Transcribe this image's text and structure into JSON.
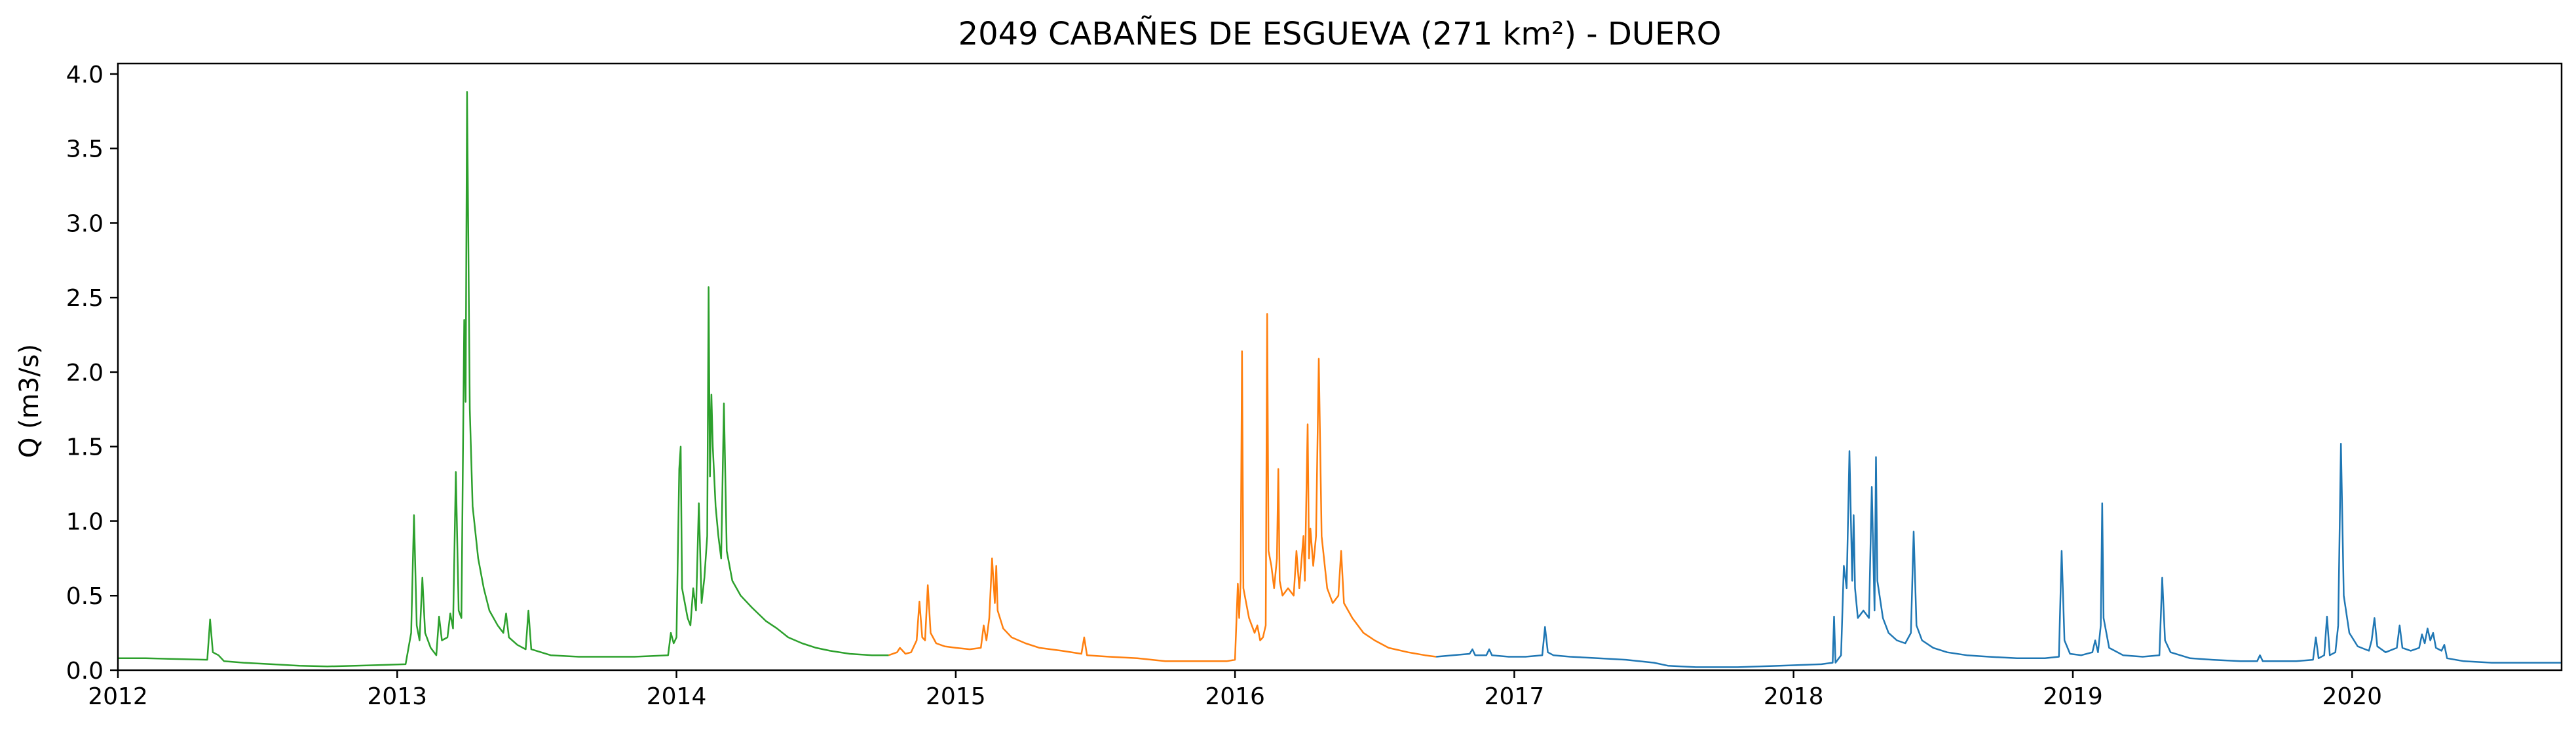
{
  "chart_data": {
    "type": "line",
    "title": "2049 CABAÑES DE ESGUEVA (271 km²) - DUERO",
    "xlabel": "",
    "ylabel": "Q (m3/s)",
    "xlim": [
      2012.0,
      2020.75
    ],
    "ylim": [
      0.0,
      4.07
    ],
    "xticks": [
      "2012",
      "2013",
      "2014",
      "2015",
      "2016",
      "2017",
      "2018",
      "2019",
      "2020"
    ],
    "xtick_values": [
      2012,
      2013,
      2014,
      2015,
      2016,
      2017,
      2018,
      2019,
      2020
    ],
    "yticks": [
      "0.0",
      "0.5",
      "1.0",
      "1.5",
      "2.0",
      "2.5",
      "3.0",
      "3.5",
      "4.0"
    ],
    "ytick_values": [
      0.0,
      0.5,
      1.0,
      1.5,
      2.0,
      2.5,
      3.0,
      3.5,
      4.0
    ],
    "grid": false,
    "legend": "none",
    "series": [
      {
        "color": "#2ca02c",
        "points": [
          [
            2012.0,
            0.08
          ],
          [
            2012.1,
            0.08
          ],
          [
            2012.2,
            0.075
          ],
          [
            2012.32,
            0.07
          ],
          [
            2012.33,
            0.34
          ],
          [
            2012.34,
            0.12
          ],
          [
            2012.36,
            0.1
          ],
          [
            2012.38,
            0.06
          ],
          [
            2012.45,
            0.05
          ],
          [
            2012.55,
            0.04
          ],
          [
            2012.65,
            0.03
          ],
          [
            2012.75,
            0.025
          ],
          [
            2012.85,
            0.03
          ],
          [
            2012.95,
            0.035
          ],
          [
            2013.03,
            0.04
          ],
          [
            2013.05,
            0.25
          ],
          [
            2013.06,
            1.04
          ],
          [
            2013.07,
            0.3
          ],
          [
            2013.08,
            0.2
          ],
          [
            2013.09,
            0.62
          ],
          [
            2013.1,
            0.25
          ],
          [
            2013.12,
            0.15
          ],
          [
            2013.14,
            0.1
          ],
          [
            2013.15,
            0.36
          ],
          [
            2013.16,
            0.2
          ],
          [
            2013.18,
            0.22
          ],
          [
            2013.19,
            0.38
          ],
          [
            2013.2,
            0.28
          ],
          [
            2013.21,
            1.33
          ],
          [
            2013.22,
            0.4
          ],
          [
            2013.23,
            0.35
          ],
          [
            2013.24,
            2.35
          ],
          [
            2013.245,
            1.8
          ],
          [
            2013.25,
            3.88
          ],
          [
            2013.26,
            1.75
          ],
          [
            2013.27,
            1.1
          ],
          [
            2013.29,
            0.75
          ],
          [
            2013.31,
            0.55
          ],
          [
            2013.33,
            0.4
          ],
          [
            2013.36,
            0.3
          ],
          [
            2013.38,
            0.25
          ],
          [
            2013.39,
            0.38
          ],
          [
            2013.4,
            0.22
          ],
          [
            2013.43,
            0.17
          ],
          [
            2013.46,
            0.14
          ],
          [
            2013.47,
            0.4
          ],
          [
            2013.48,
            0.14
          ],
          [
            2013.55,
            0.1
          ],
          [
            2013.65,
            0.09
          ],
          [
            2013.75,
            0.09
          ],
          [
            2013.85,
            0.09
          ],
          [
            2013.97,
            0.1
          ],
          [
            2013.98,
            0.25
          ],
          [
            2013.99,
            0.18
          ],
          [
            2014.0,
            0.22
          ],
          [
            2014.01,
            1.35
          ],
          [
            2014.015,
            1.5
          ],
          [
            2014.02,
            0.55
          ],
          [
            2014.04,
            0.35
          ],
          [
            2014.05,
            0.3
          ],
          [
            2014.06,
            0.55
          ],
          [
            2014.07,
            0.4
          ],
          [
            2014.08,
            1.12
          ],
          [
            2014.09,
            0.45
          ],
          [
            2014.1,
            0.62
          ],
          [
            2014.11,
            0.9
          ],
          [
            2014.115,
            2.57
          ],
          [
            2014.12,
            1.3
          ],
          [
            2014.125,
            1.85
          ],
          [
            2014.13,
            1.5
          ],
          [
            2014.14,
            1.1
          ],
          [
            2014.15,
            0.9
          ],
          [
            2014.16,
            0.75
          ],
          [
            2014.17,
            1.79
          ],
          [
            2014.18,
            0.8
          ],
          [
            2014.2,
            0.6
          ],
          [
            2014.23,
            0.5
          ],
          [
            2014.27,
            0.42
          ],
          [
            2014.32,
            0.33
          ],
          [
            2014.36,
            0.28
          ],
          [
            2014.4,
            0.22
          ],
          [
            2014.45,
            0.18
          ],
          [
            2014.5,
            0.15
          ],
          [
            2014.55,
            0.13
          ],
          [
            2014.62,
            0.11
          ],
          [
            2014.7,
            0.1
          ],
          [
            2014.76,
            0.1
          ]
        ]
      },
      {
        "color": "#ff7f0e",
        "points": [
          [
            2014.76,
            0.1
          ],
          [
            2014.79,
            0.12
          ],
          [
            2014.8,
            0.15
          ],
          [
            2014.82,
            0.11
          ],
          [
            2014.84,
            0.12
          ],
          [
            2014.86,
            0.2
          ],
          [
            2014.87,
            0.46
          ],
          [
            2014.88,
            0.22
          ],
          [
            2014.89,
            0.2
          ],
          [
            2014.9,
            0.57
          ],
          [
            2014.91,
            0.25
          ],
          [
            2014.93,
            0.18
          ],
          [
            2014.96,
            0.16
          ],
          [
            2015.0,
            0.15
          ],
          [
            2015.05,
            0.14
          ],
          [
            2015.09,
            0.15
          ],
          [
            2015.1,
            0.3
          ],
          [
            2015.11,
            0.2
          ],
          [
            2015.12,
            0.35
          ],
          [
            2015.13,
            0.75
          ],
          [
            2015.14,
            0.45
          ],
          [
            2015.145,
            0.7
          ],
          [
            2015.15,
            0.4
          ],
          [
            2015.17,
            0.28
          ],
          [
            2015.2,
            0.22
          ],
          [
            2015.25,
            0.18
          ],
          [
            2015.3,
            0.15
          ],
          [
            2015.38,
            0.13
          ],
          [
            2015.45,
            0.11
          ],
          [
            2015.46,
            0.22
          ],
          [
            2015.47,
            0.1
          ],
          [
            2015.55,
            0.09
          ],
          [
            2015.65,
            0.08
          ],
          [
            2015.75,
            0.06
          ],
          [
            2015.85,
            0.06
          ],
          [
            2015.97,
            0.06
          ],
          [
            2016.0,
            0.07
          ],
          [
            2016.01,
            0.58
          ],
          [
            2016.015,
            0.35
          ],
          [
            2016.02,
            0.6
          ],
          [
            2016.025,
            2.14
          ],
          [
            2016.03,
            0.55
          ],
          [
            2016.05,
            0.35
          ],
          [
            2016.07,
            0.25
          ],
          [
            2016.08,
            0.3
          ],
          [
            2016.09,
            0.2
          ],
          [
            2016.1,
            0.22
          ],
          [
            2016.11,
            0.3
          ],
          [
            2016.115,
            2.39
          ],
          [
            2016.12,
            0.8
          ],
          [
            2016.13,
            0.7
          ],
          [
            2016.14,
            0.55
          ],
          [
            2016.15,
            0.75
          ],
          [
            2016.155,
            1.35
          ],
          [
            2016.16,
            0.6
          ],
          [
            2016.17,
            0.5
          ],
          [
            2016.19,
            0.55
          ],
          [
            2016.21,
            0.5
          ],
          [
            2016.22,
            0.8
          ],
          [
            2016.23,
            0.55
          ],
          [
            2016.245,
            0.9
          ],
          [
            2016.25,
            0.6
          ],
          [
            2016.26,
            1.65
          ],
          [
            2016.265,
            0.75
          ],
          [
            2016.27,
            0.95
          ],
          [
            2016.28,
            0.7
          ],
          [
            2016.29,
            0.9
          ],
          [
            2016.3,
            2.09
          ],
          [
            2016.31,
            0.9
          ],
          [
            2016.33,
            0.55
          ],
          [
            2016.35,
            0.45
          ],
          [
            2016.37,
            0.5
          ],
          [
            2016.38,
            0.8
          ],
          [
            2016.39,
            0.45
          ],
          [
            2016.42,
            0.35
          ],
          [
            2016.46,
            0.25
          ],
          [
            2016.5,
            0.2
          ],
          [
            2016.55,
            0.15
          ],
          [
            2016.62,
            0.12
          ],
          [
            2016.68,
            0.1
          ],
          [
            2016.72,
            0.09
          ]
        ]
      },
      {
        "color": "#1f77b4",
        "points": [
          [
            2016.72,
            0.09
          ],
          [
            2016.78,
            0.1
          ],
          [
            2016.84,
            0.11
          ],
          [
            2016.85,
            0.14
          ],
          [
            2016.86,
            0.1
          ],
          [
            2016.9,
            0.1
          ],
          [
            2016.91,
            0.14
          ],
          [
            2016.92,
            0.1
          ],
          [
            2016.98,
            0.09
          ],
          [
            2017.04,
            0.09
          ],
          [
            2017.1,
            0.1
          ],
          [
            2017.11,
            0.29
          ],
          [
            2017.12,
            0.12
          ],
          [
            2017.14,
            0.1
          ],
          [
            2017.2,
            0.09
          ],
          [
            2017.3,
            0.08
          ],
          [
            2017.4,
            0.07
          ],
          [
            2017.5,
            0.05
          ],
          [
            2017.55,
            0.03
          ],
          [
            2017.65,
            0.02
          ],
          [
            2017.8,
            0.02
          ],
          [
            2017.95,
            0.03
          ],
          [
            2018.1,
            0.04
          ],
          [
            2018.14,
            0.05
          ],
          [
            2018.145,
            0.36
          ],
          [
            2018.15,
            0.05
          ],
          [
            2018.17,
            0.1
          ],
          [
            2018.18,
            0.7
          ],
          [
            2018.19,
            0.55
          ],
          [
            2018.2,
            1.47
          ],
          [
            2018.21,
            0.6
          ],
          [
            2018.215,
            1.04
          ],
          [
            2018.22,
            0.55
          ],
          [
            2018.23,
            0.35
          ],
          [
            2018.25,
            0.4
          ],
          [
            2018.27,
            0.35
          ],
          [
            2018.28,
            1.23
          ],
          [
            2018.29,
            0.4
          ],
          [
            2018.295,
            1.43
          ],
          [
            2018.3,
            0.6
          ],
          [
            2018.32,
            0.35
          ],
          [
            2018.34,
            0.25
          ],
          [
            2018.37,
            0.2
          ],
          [
            2018.4,
            0.18
          ],
          [
            2018.42,
            0.25
          ],
          [
            2018.43,
            0.93
          ],
          [
            2018.44,
            0.3
          ],
          [
            2018.46,
            0.2
          ],
          [
            2018.5,
            0.15
          ],
          [
            2018.55,
            0.12
          ],
          [
            2018.62,
            0.1
          ],
          [
            2018.7,
            0.09
          ],
          [
            2018.8,
            0.08
          ],
          [
            2018.9,
            0.08
          ],
          [
            2018.95,
            0.09
          ],
          [
            2018.96,
            0.8
          ],
          [
            2018.97,
            0.2
          ],
          [
            2018.99,
            0.11
          ],
          [
            2019.03,
            0.1
          ],
          [
            2019.07,
            0.12
          ],
          [
            2019.08,
            0.2
          ],
          [
            2019.09,
            0.12
          ],
          [
            2019.1,
            0.3
          ],
          [
            2019.105,
            1.12
          ],
          [
            2019.11,
            0.35
          ],
          [
            2019.13,
            0.15
          ],
          [
            2019.18,
            0.1
          ],
          [
            2019.25,
            0.09
          ],
          [
            2019.31,
            0.1
          ],
          [
            2019.32,
            0.62
          ],
          [
            2019.33,
            0.2
          ],
          [
            2019.35,
            0.12
          ],
          [
            2019.42,
            0.08
          ],
          [
            2019.5,
            0.07
          ],
          [
            2019.6,
            0.06
          ],
          [
            2019.66,
            0.06
          ],
          [
            2019.67,
            0.1
          ],
          [
            2019.68,
            0.06
          ],
          [
            2019.8,
            0.06
          ],
          [
            2019.86,
            0.07
          ],
          [
            2019.87,
            0.22
          ],
          [
            2019.88,
            0.08
          ],
          [
            2019.9,
            0.1
          ],
          [
            2019.91,
            0.36
          ],
          [
            2019.92,
            0.1
          ],
          [
            2019.94,
            0.12
          ],
          [
            2019.95,
            0.3
          ],
          [
            2019.96,
            1.52
          ],
          [
            2019.97,
            0.5
          ],
          [
            2019.99,
            0.25
          ],
          [
            2020.02,
            0.16
          ],
          [
            2020.06,
            0.13
          ],
          [
            2020.07,
            0.2
          ],
          [
            2020.08,
            0.35
          ],
          [
            2020.09,
            0.16
          ],
          [
            2020.12,
            0.12
          ],
          [
            2020.16,
            0.15
          ],
          [
            2020.17,
            0.3
          ],
          [
            2020.18,
            0.15
          ],
          [
            2020.21,
            0.13
          ],
          [
            2020.24,
            0.15
          ],
          [
            2020.25,
            0.24
          ],
          [
            2020.26,
            0.18
          ],
          [
            2020.27,
            0.28
          ],
          [
            2020.28,
            0.2
          ],
          [
            2020.29,
            0.25
          ],
          [
            2020.3,
            0.15
          ],
          [
            2020.32,
            0.13
          ],
          [
            2020.33,
            0.17
          ],
          [
            2020.34,
            0.08
          ],
          [
            2020.4,
            0.06
          ],
          [
            2020.5,
            0.05
          ],
          [
            2020.6,
            0.05
          ],
          [
            2020.7,
            0.05
          ],
          [
            2020.75,
            0.05
          ]
        ]
      }
    ]
  }
}
